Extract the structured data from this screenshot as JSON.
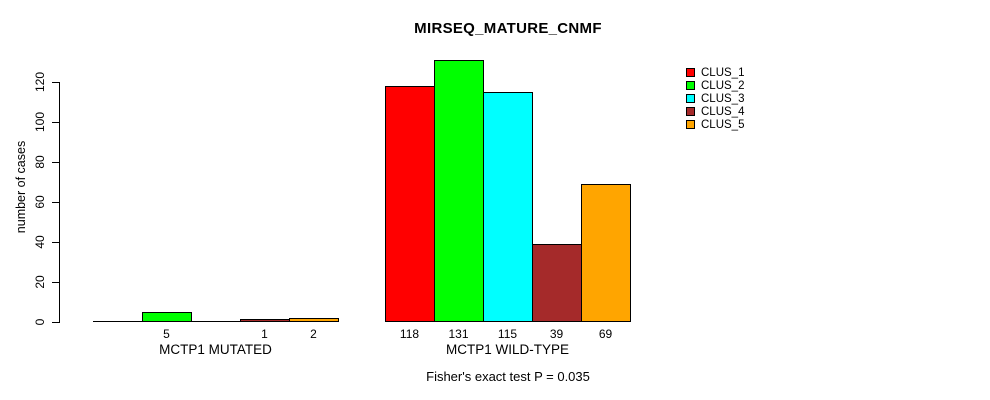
{
  "title": "MIRSEQ_MATURE_CNMF",
  "subtitle": "Fisher's exact test P = 0.035",
  "chart_data": {
    "type": "bar",
    "title": "MIRSEQ_MATURE_CNMF",
    "xlabel": "",
    "ylabel": "number of cases",
    "ylim": [
      0,
      131
    ],
    "yticks": [
      0,
      20,
      40,
      60,
      80,
      100,
      120
    ],
    "grid": false,
    "legend_position": "top-right",
    "annotation": "Fisher's exact test P = 0.035",
    "series": [
      {
        "name": "CLUS_1",
        "color": "#FF0000"
      },
      {
        "name": "CLUS_2",
        "color": "#00FF00"
      },
      {
        "name": "CLUS_3",
        "color": "#00FFFF"
      },
      {
        "name": "CLUS_4",
        "color": "#A52A2A"
      },
      {
        "name": "CLUS_5",
        "color": "#FFA500"
      }
    ],
    "groups": [
      {
        "label": "MCTP1 MUTATED",
        "values": [
          0,
          5,
          0,
          1,
          2
        ]
      },
      {
        "label": "MCTP1 WILD-TYPE",
        "values": [
          118,
          131,
          115,
          39,
          69
        ]
      }
    ],
    "bar_value_labels": [
      [
        "",
        "5",
        "",
        "1",
        "2"
      ],
      [
        "118",
        "131",
        "115",
        "39",
        "69"
      ]
    ]
  }
}
